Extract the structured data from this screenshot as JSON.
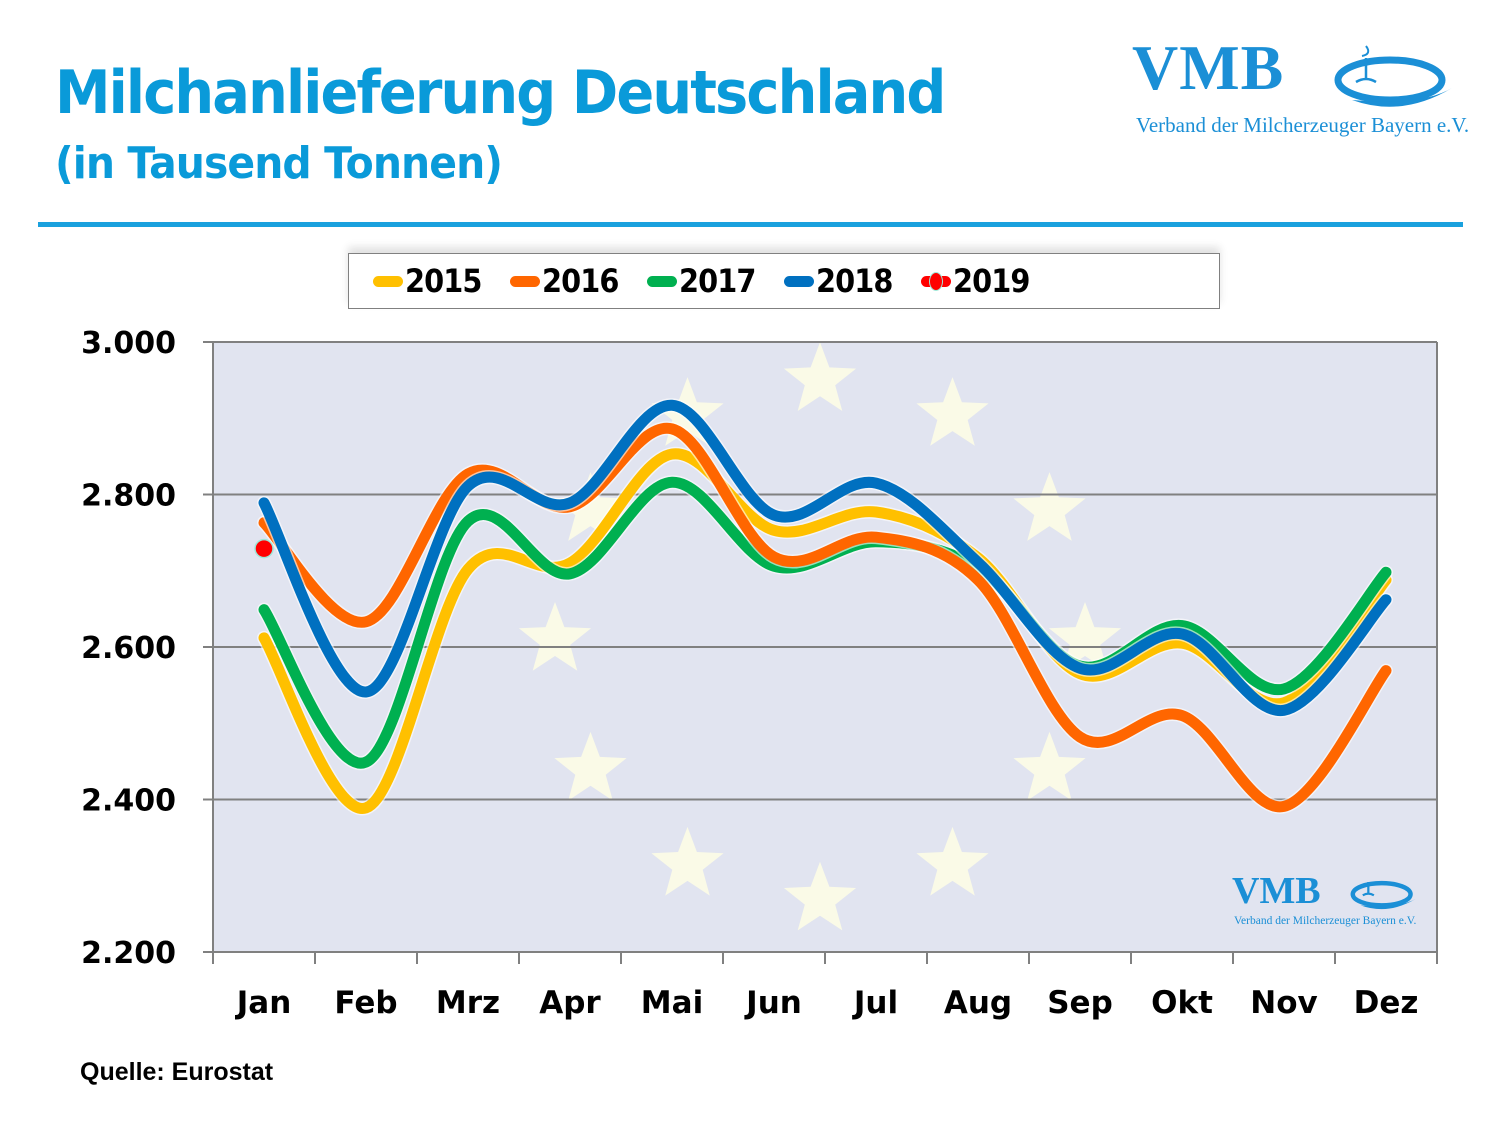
{
  "header": {
    "title": "Milchanlieferung Deutschland",
    "subtitle": "(in Tausend Tonnen)"
  },
  "logo": {
    "name": "VMB",
    "tagline": "Verband der Milcherzeuger Bayern e.V."
  },
  "watermark": {
    "name": "VMB",
    "tagline": "Verband der Milcherzeuger Bayern e.V."
  },
  "footer": {
    "source": "Quelle: Eurostat"
  },
  "colors": {
    "accent": "#0a9ad9",
    "plot_background": "#e1e4f0",
    "star": "#fbfbe6",
    "grid": "#808080"
  },
  "chart_data": {
    "type": "line",
    "title": "Milchanlieferung Deutschland",
    "subtitle": "(in Tausend Tonnen)",
    "xlabel": "",
    "ylabel": "",
    "categories": [
      "Jan",
      "Feb",
      "Mrz",
      "Apr",
      "Mai",
      "Jun",
      "Jul",
      "Aug",
      "Sep",
      "Okt",
      "Nov",
      "Dez"
    ],
    "ylim": [
      2200,
      3000
    ],
    "yticks": [
      3000,
      2800,
      2600,
      2400,
      2200
    ],
    "ytick_labels": [
      "3.000",
      "2.800",
      "2.600",
      "2.400",
      "2.200"
    ],
    "grid": true,
    "smooth": true,
    "legend_position": "top",
    "series": [
      {
        "name": "2015",
        "color": "#ffc000",
        "values": [
          2612,
          2389,
          2702,
          2710,
          2853,
          2753,
          2777,
          2717,
          2565,
          2605,
          2527,
          2688
        ]
      },
      {
        "name": "2016",
        "color": "#ff6600",
        "values": [
          2763,
          2633,
          2827,
          2784,
          2886,
          2718,
          2744,
          2688,
          2482,
          2510,
          2391,
          2569
        ]
      },
      {
        "name": "2017",
        "color": "#00b050",
        "values": [
          2649,
          2449,
          2765,
          2696,
          2816,
          2706,
          2738,
          2704,
          2575,
          2628,
          2545,
          2698
        ]
      },
      {
        "name": "2018",
        "color": "#0070c0",
        "values": [
          2789,
          2541,
          2811,
          2789,
          2917,
          2773,
          2815,
          2711,
          2572,
          2617,
          2517,
          2662
        ]
      },
      {
        "name": "2019",
        "color": "#ff0000",
        "marker": true,
        "values": [
          2729,
          null,
          null,
          null,
          null,
          null,
          null,
          null,
          null,
          null,
          null,
          null
        ]
      }
    ],
    "annotations": [
      "Quelle: Eurostat"
    ]
  }
}
